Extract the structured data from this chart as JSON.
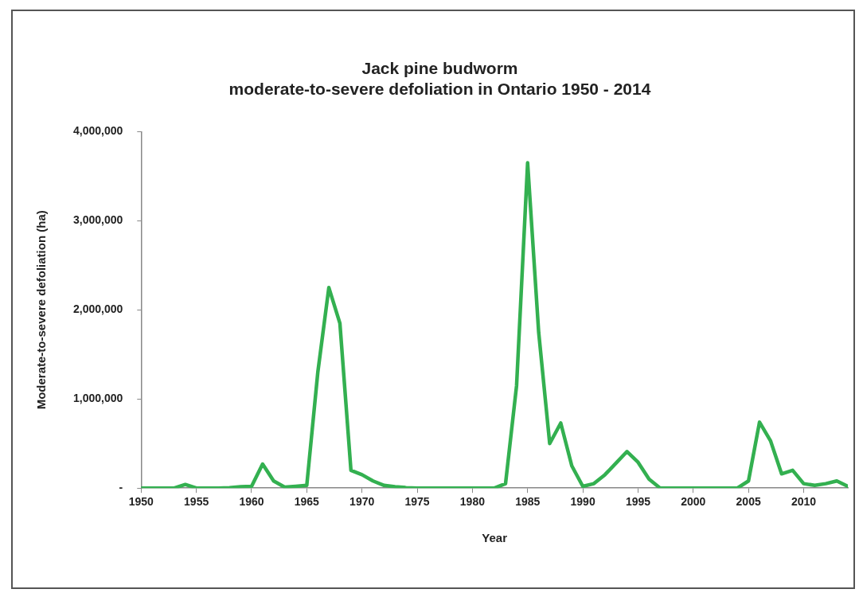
{
  "chart_data": {
    "type": "line",
    "title": "Jack pine budworm\nmoderate-to-severe defoliation in Ontario 1950 - 2014",
    "xlabel": "Year",
    "ylabel": "Moderate-to-severe defoliation (ha)",
    "x": [
      1950,
      1951,
      1952,
      1953,
      1954,
      1955,
      1956,
      1957,
      1958,
      1959,
      1960,
      1961,
      1962,
      1963,
      1964,
      1965,
      1966,
      1967,
      1968,
      1969,
      1970,
      1971,
      1972,
      1973,
      1974,
      1975,
      1976,
      1977,
      1978,
      1979,
      1980,
      1981,
      1982,
      1983,
      1984,
      1985,
      1986,
      1987,
      1988,
      1989,
      1990,
      1991,
      1992,
      1993,
      1994,
      1995,
      1996,
      1997,
      1998,
      1999,
      2000,
      2001,
      2002,
      2003,
      2004,
      2005,
      2006,
      2007,
      2008,
      2009,
      2010,
      2011,
      2012,
      2013,
      2014
    ],
    "series": [
      {
        "color": "#33b050",
        "values": [
          0,
          0,
          0,
          0,
          40000,
          0,
          0,
          0,
          5000,
          15000,
          20000,
          270000,
          80000,
          10000,
          20000,
          30000,
          1300000,
          2250000,
          1850000,
          200000,
          150000,
          80000,
          30000,
          15000,
          5000,
          0,
          0,
          0,
          0,
          0,
          0,
          0,
          0,
          50000,
          1150000,
          3650000,
          1750000,
          500000,
          730000,
          250000,
          20000,
          50000,
          150000,
          280000,
          410000,
          290000,
          100000,
          0,
          0,
          0,
          0,
          0,
          0,
          0,
          0,
          80000,
          740000,
          530000,
          160000,
          200000,
          50000,
          30000,
          50000,
          80000,
          20000
        ]
      }
    ],
    "xlim": [
      1950,
      2014
    ],
    "xticks": [
      1950,
      1955,
      1960,
      1965,
      1970,
      1975,
      1980,
      1985,
      1990,
      1995,
      2000,
      2005,
      2010
    ],
    "ylim": [
      0,
      4000000
    ],
    "yticks": [
      {
        "value": 0,
        "label": "-"
      },
      {
        "value": 1000000,
        "label": "1,000,000"
      },
      {
        "value": 2000000,
        "label": "2,000,000"
      },
      {
        "value": 3000000,
        "label": "3,000,000"
      },
      {
        "value": 4000000,
        "label": "4,000,000"
      }
    ],
    "grid": false,
    "legend": false,
    "marker": "none",
    "line_style": "solid"
  }
}
